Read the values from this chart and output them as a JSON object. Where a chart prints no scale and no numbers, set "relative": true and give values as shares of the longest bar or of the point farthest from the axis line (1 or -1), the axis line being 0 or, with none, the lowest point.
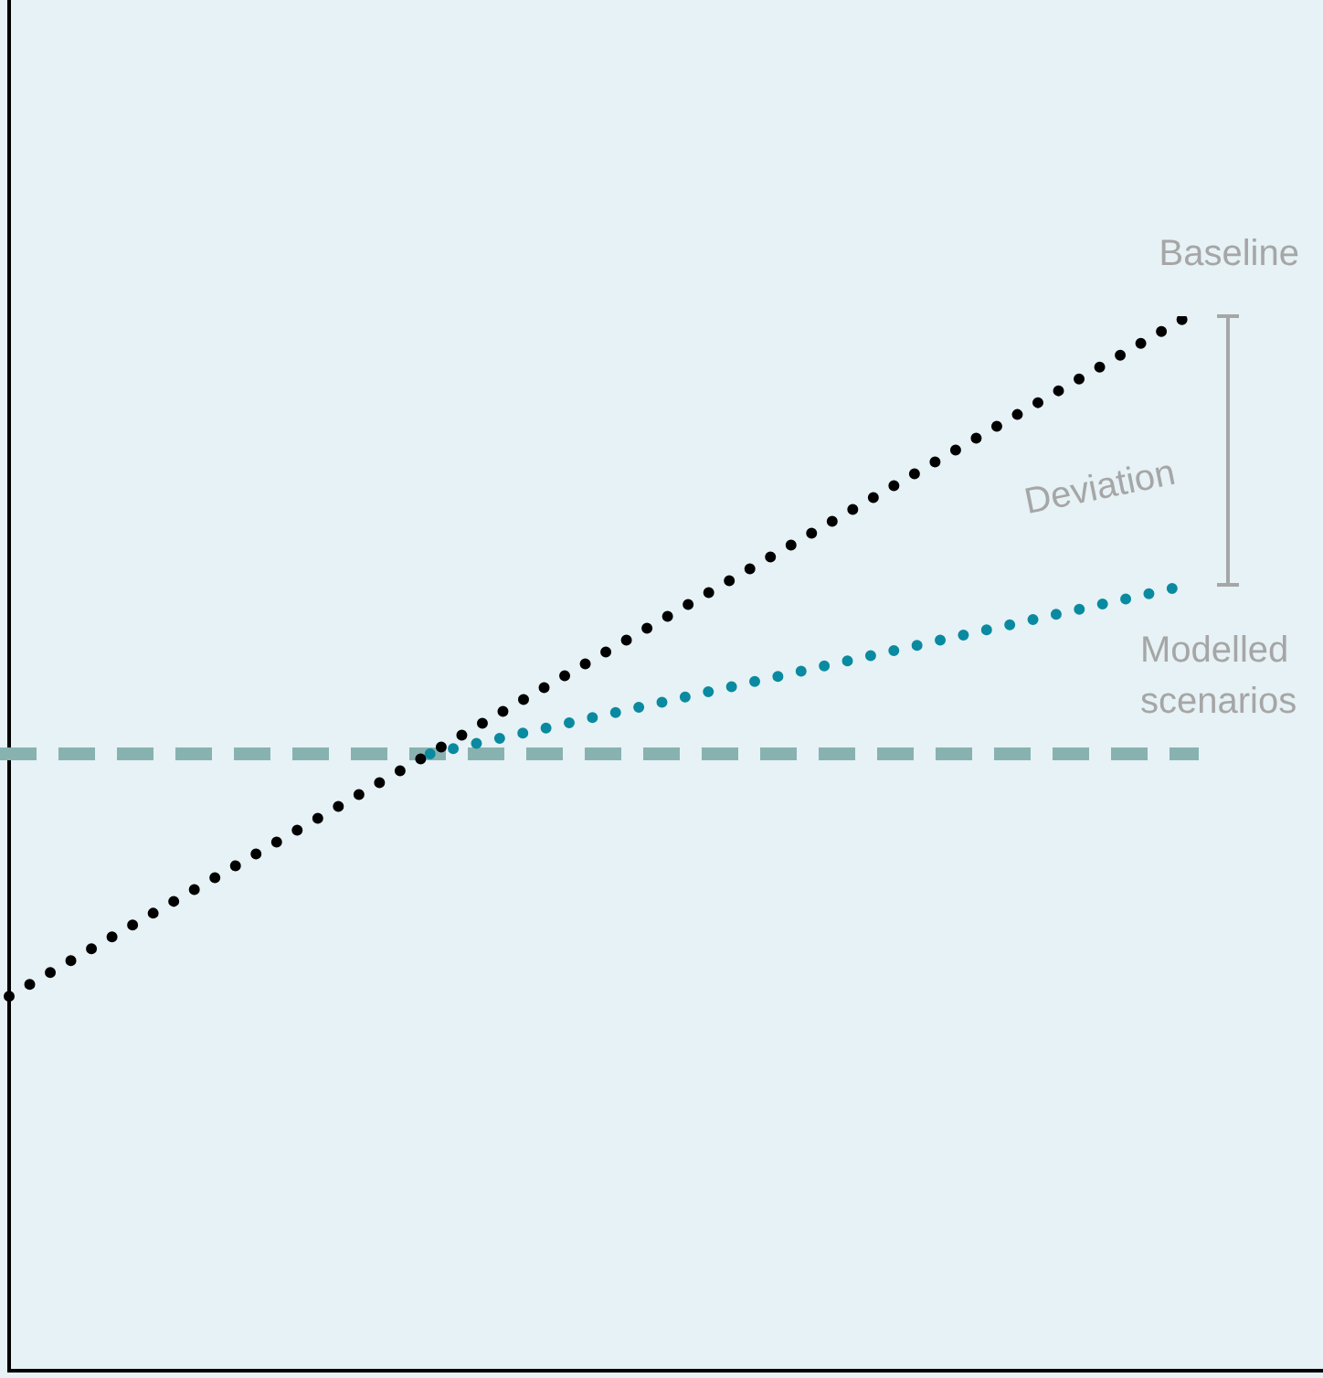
{
  "chart_data": {
    "type": "line",
    "relative": true,
    "categories": [
      null,
      null,
      null,
      null,
      null,
      null,
      null,
      null,
      null,
      null,
      null,
      null,
      null,
      null,
      null,
      null,
      null,
      null,
      null,
      null,
      null,
      null,
      null,
      null,
      null,
      null,
      null,
      null,
      null
    ],
    "series": [
      {
        "name": "Baseline",
        "color": "#000000",
        "values": [
          0.355,
          null,
          null,
          null,
          null,
          null,
          null,
          null,
          null,
          null,
          null,
          null,
          null,
          null,
          null,
          null,
          null,
          null,
          null,
          null,
          null,
          null,
          null,
          null,
          null,
          null,
          null,
          null,
          1
        ]
      },
      {
        "name": "Modelled scenarios",
        "color": "#0a8aa0",
        "values": [
          null,
          null,
          null,
          null,
          null,
          null,
          null,
          null,
          null,
          null,
          0.585,
          null,
          null,
          null,
          null,
          null,
          null,
          null,
          null,
          null,
          null,
          null,
          null,
          null,
          null,
          null,
          null,
          null,
          0.745
        ]
      }
    ],
    "ref_lines": [
      {
        "axis": "y",
        "value": 0.585,
        "color": "#88b2b0",
        "line_style": "dashed"
      }
    ],
    "annotations": [
      "Deviation"
    ],
    "legend": false,
    "marker": "none",
    "line_style": "dotted"
  }
}
